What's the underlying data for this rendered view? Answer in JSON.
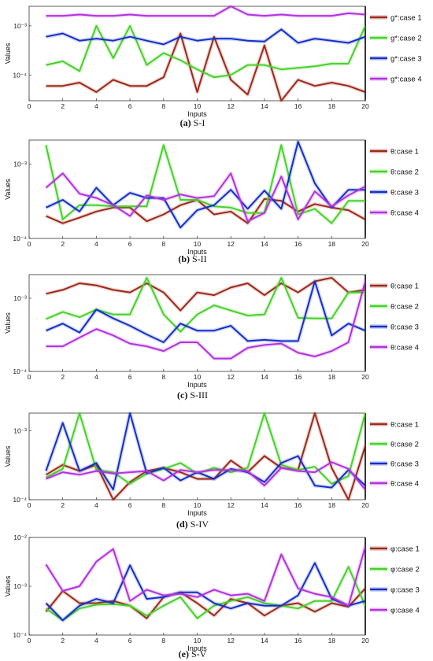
{
  "colors": {
    "case1": "#9b2a1a",
    "case2": "#47d12a",
    "case3": "#1530c8",
    "case4": "#b232e0"
  },
  "chart_data": [
    {
      "type": "line",
      "caption_bold": "(a)",
      "caption_rest": " S-I",
      "xlabel": "Inputs",
      "ylabel": "Values",
      "x": [
        1,
        2,
        3,
        4,
        5,
        6,
        7,
        8,
        9,
        10,
        11,
        12,
        13,
        14,
        15,
        16,
        17,
        18,
        19,
        20
      ],
      "xlim": [
        0,
        20
      ],
      "ylim": [
        3e-05,
        0.0025
      ],
      "yscale": "log",
      "x_ticks": [
        "0",
        "2",
        "4",
        "6",
        "8",
        "10",
        "12",
        "14",
        "16",
        "18",
        "20"
      ],
      "y_ticks": [
        {
          "value": 0.001,
          "label": "10⁻³"
        },
        {
          "value": 0.0001,
          "label": "10⁻⁴"
        }
      ],
      "legend_placement": "right",
      "series": [
        {
          "name": "g*:case 1",
          "values": [
            6e-05,
            6e-05,
            7e-05,
            4.5e-05,
            8e-05,
            6e-05,
            6e-05,
            9e-05,
            0.0007,
            4.5e-05,
            0.0006,
            8e-05,
            4e-05,
            0.0004,
            3e-05,
            8e-05,
            6e-05,
            7e-05,
            6e-05,
            4.5e-05
          ]
        },
        {
          "name": "g*:case 2",
          "values": [
            0.00016,
            0.00019,
            0.00012,
            0.001,
            0.00022,
            0.001,
            0.00016,
            0.00028,
            0.0002,
            0.00013,
            9e-05,
            0.0001,
            0.00016,
            0.00016,
            0.00013,
            0.00014,
            0.00015,
            0.00017,
            0.00017,
            0.001
          ]
        },
        {
          "name": "g*:case 3",
          "values": [
            0.0006,
            0.0007,
            0.0005,
            0.00055,
            0.0005,
            0.0006,
            0.0005,
            0.00042,
            0.0006,
            0.0005,
            0.00055,
            0.00055,
            0.0005,
            0.00048,
            0.00085,
            0.00045,
            0.00055,
            0.0005,
            0.00045,
            0.0006
          ]
        },
        {
          "name": "g*:case 4",
          "values": [
            0.0016,
            0.0016,
            0.0017,
            0.0016,
            0.0016,
            0.0017,
            0.0016,
            0.0016,
            0.0016,
            0.0016,
            0.0016,
            0.0025,
            0.0017,
            0.0016,
            0.0017,
            0.0016,
            0.0016,
            0.0016,
            0.0018,
            0.0017
          ]
        }
      ]
    },
    {
      "type": "line",
      "caption_bold": "(b)",
      "caption_rest": " S-II",
      "xlabel": "Inputs",
      "ylabel": "Values",
      "x": [
        1,
        2,
        3,
        4,
        5,
        6,
        7,
        8,
        9,
        10,
        11,
        12,
        13,
        14,
        15,
        16,
        17,
        18,
        19,
        20
      ],
      "xlim": [
        0,
        20
      ],
      "ylim": [
        0.0001,
        0.0021
      ],
      "yscale": "log",
      "x_ticks": [
        "0",
        "2",
        "4",
        "6",
        "8",
        "10",
        "12",
        "14",
        "16",
        "18",
        "20"
      ],
      "y_ticks": [
        {
          "value": 0.001,
          "label": "10⁻³"
        },
        {
          "value": 0.0001,
          "label": "10⁻⁴"
        }
      ],
      "legend_placement": "right",
      "series": [
        {
          "name": "θ:case 1",
          "values": [
            0.0002,
            0.00016,
            0.00019,
            0.00023,
            0.00026,
            0.00026,
            0.00017,
            0.00021,
            0.00028,
            0.00033,
            0.00021,
            0.00023,
            0.00016,
            0.00034,
            0.00032,
            0.00023,
            0.00029,
            0.00026,
            0.00024,
            0.00018
          ]
        },
        {
          "name": "θ:case 2",
          "values": [
            0.0018,
            0.00018,
            0.00028,
            0.00028,
            0.00027,
            0.00027,
            0.00027,
            0.0018,
            0.00033,
            0.00033,
            0.00027,
            0.00026,
            0.00022,
            0.00022,
            0.0018,
            0.00021,
            0.00025,
            0.00016,
            0.00032,
            0.00032
          ]
        },
        {
          "name": "θ:case 3",
          "values": [
            0.00026,
            0.00033,
            0.00023,
            0.00048,
            0.00028,
            0.00041,
            0.00035,
            0.00035,
            0.00014,
            0.00024,
            0.00028,
            0.00045,
            0.00025,
            0.00044,
            0.00025,
            0.002,
            0.00055,
            0.00026,
            0.00045,
            0.00045
          ]
        },
        {
          "name": "θ:case 4",
          "values": [
            0.00048,
            0.00075,
            0.0004,
            0.00035,
            0.00028,
            0.0002,
            0.00038,
            0.00033,
            0.00039,
            0.00035,
            0.00037,
            0.00075,
            0.00017,
            0.00022,
            0.00068,
            0.00018,
            0.00043,
            0.00027,
            0.00038,
            0.0005
          ]
        }
      ]
    },
    {
      "type": "line",
      "caption_bold": "(c)",
      "caption_rest": " S-III",
      "xlabel": "Inputs",
      "ylabel": "Values",
      "x": [
        1,
        2,
        3,
        4,
        5,
        6,
        7,
        8,
        9,
        10,
        11,
        12,
        13,
        14,
        15,
        16,
        17,
        18,
        19,
        20
      ],
      "xlim": [
        0,
        20
      ],
      "ylim": [
        0.0001,
        0.0021
      ],
      "yscale": "log",
      "x_ticks": [
        "0",
        "2",
        "4",
        "6",
        "8",
        "10",
        "12",
        "14",
        "16",
        "18",
        "20"
      ],
      "y_ticks": [
        {
          "value": 0.001,
          "label": "10⁻³"
        },
        {
          "value": 0.0001,
          "label": "10⁻⁴"
        }
      ],
      "legend_placement": "right",
      "series": [
        {
          "name": "θ:case 1",
          "values": [
            0.00115,
            0.0013,
            0.0016,
            0.0015,
            0.0013,
            0.0012,
            0.0016,
            0.0012,
            0.00068,
            0.0012,
            0.0011,
            0.0014,
            0.0016,
            0.0011,
            0.0016,
            0.0012,
            0.0017,
            0.0019,
            0.0012,
            0.0013
          ]
        },
        {
          "name": "θ:case 2",
          "values": [
            0.00052,
            0.00065,
            0.00055,
            0.0007,
            0.0006,
            0.0006,
            0.0019,
            0.0006,
            0.00035,
            0.0006,
            0.0008,
            0.00068,
            0.00058,
            0.0006,
            0.0019,
            0.00054,
            0.00053,
            0.00053,
            0.0012,
            0.0012
          ]
        },
        {
          "name": "θ:case 3",
          "values": [
            0.00036,
            0.00045,
            0.00034,
            0.0007,
            0.00053,
            0.00042,
            0.00032,
            0.00025,
            0.00045,
            0.00036,
            0.00036,
            0.00042,
            0.00026,
            0.00027,
            0.00026,
            0.00026,
            0.0017,
            0.00031,
            0.00045,
            0.00036
          ]
        },
        {
          "name": "θ:case 4",
          "values": [
            0.00022,
            0.00022,
            0.00029,
            0.00038,
            0.00031,
            0.00024,
            0.00022,
            0.00019,
            0.00025,
            0.00025,
            0.00015,
            0.00015,
            0.00021,
            0.00023,
            0.00024,
            0.00018,
            0.00016,
            0.00019,
            0.00025,
            0.0017
          ]
        }
      ]
    },
    {
      "type": "line",
      "caption_bold": "(d)",
      "caption_rest": " S-IV",
      "xlabel": "Inputs",
      "ylabel": "Values",
      "x": [
        1,
        2,
        3,
        4,
        5,
        6,
        7,
        8,
        9,
        10,
        11,
        12,
        13,
        14,
        15,
        16,
        17,
        18,
        19,
        20
      ],
      "xlim": [
        0,
        20
      ],
      "ylim": [
        0.0001,
        0.0018
      ],
      "yscale": "log",
      "x_ticks": [
        "0",
        "2",
        "4",
        "6",
        "8",
        "10",
        "12",
        "14",
        "16",
        "18",
        "20"
      ],
      "y_ticks": [
        {
          "value": 0.001,
          "label": "10⁻³"
        },
        {
          "value": 0.0001,
          "label": "10⁻⁴"
        }
      ],
      "legend_placement": "right",
      "series": [
        {
          "name": "θ:case 1",
          "values": [
            0.00023,
            0.00032,
            0.00026,
            0.00032,
            0.0001,
            0.00018,
            0.00026,
            0.00029,
            0.00025,
            0.0002,
            0.0002,
            0.00037,
            0.00025,
            0.00043,
            0.00029,
            0.00027,
            0.0018,
            0.00029,
            0.0001,
            0.0006
          ]
        },
        {
          "name": "θ:case 2",
          "values": [
            0.00021,
            0.00028,
            0.0018,
            0.00027,
            0.00025,
            0.00017,
            0.00024,
            0.00028,
            0.00034,
            0.00024,
            0.00029,
            0.00025,
            0.00029,
            0.0018,
            0.00032,
            0.00027,
            0.0003,
            0.00017,
            0.00022,
            0.0018
          ]
        },
        {
          "name": "θ:case 3",
          "values": [
            0.00026,
            0.0013,
            0.00026,
            0.00034,
            0.00014,
            0.0018,
            0.00024,
            0.00029,
            0.00019,
            0.00025,
            0.0002,
            0.00028,
            0.00025,
            0.00018,
            0.00034,
            0.00043,
            0.00016,
            0.00015,
            0.00027,
            0.00016
          ]
        },
        {
          "name": "θ:case 4",
          "values": [
            0.0002,
            0.00025,
            0.00023,
            0.00026,
            0.00024,
            0.00025,
            0.00026,
            0.00019,
            0.00027,
            0.00025,
            0.00027,
            0.00027,
            0.00026,
            0.00016,
            0.00029,
            0.00026,
            0.00025,
            0.00035,
            0.00028,
            0.00014
          ]
        }
      ]
    },
    {
      "type": "line",
      "caption_bold": "(e)",
      "caption_rest": " S-V",
      "xlabel": "Inputs",
      "ylabel": "Values",
      "x": [
        1,
        2,
        3,
        4,
        5,
        6,
        7,
        8,
        9,
        10,
        11,
        12,
        13,
        14,
        15,
        16,
        17,
        18,
        19,
        20
      ],
      "xlim": [
        0,
        20
      ],
      "ylim": [
        0.0001,
        0.01
      ],
      "yscale": "log",
      "x_ticks": [
        "0",
        "2",
        "4",
        "6",
        "8",
        "10",
        "12",
        "14",
        "16",
        "18",
        "20"
      ],
      "y_ticks": [
        {
          "value": 0.01,
          "label": "10⁻²"
        },
        {
          "value": 0.001,
          "label": "10⁻³"
        },
        {
          "value": 0.0001,
          "label": "10⁻⁴"
        }
      ],
      "legend_placement": "right",
      "series": [
        {
          "name": "φ:case 1",
          "values": [
            0.0003,
            0.0008,
            0.00045,
            0.00045,
            0.0005,
            0.0004,
            0.00022,
            0.0006,
            0.00075,
            0.00045,
            0.00025,
            0.00055,
            0.00045,
            0.00025,
            0.0004,
            0.00045,
            0.0003,
            0.00045,
            0.00038,
            0.0009
          ]
        },
        {
          "name": "φ:case 2",
          "values": [
            0.00035,
            0.0002,
            0.00035,
            0.00042,
            0.00043,
            0.0004,
            0.00025,
            0.0004,
            0.0006,
            0.00022,
            0.0004,
            0.0005,
            0.0006,
            0.00045,
            0.0004,
            0.00035,
            0.0005,
            0.0005,
            0.0025,
            0.0004
          ]
        },
        {
          "name": "φ:case 3",
          "values": [
            0.00045,
            0.0002,
            0.0004,
            0.00055,
            0.00045,
            0.0027,
            0.00055,
            0.0006,
            0.00075,
            0.00075,
            0.00045,
            0.00035,
            0.00045,
            0.0004,
            0.0004,
            0.00065,
            0.003,
            0.00055,
            0.0004,
            0.0005
          ]
        },
        {
          "name": "φ:case 4",
          "values": [
            0.0028,
            0.0008,
            0.001,
            0.0032,
            0.0058,
            0.0005,
            0.00085,
            0.00065,
            0.0007,
            0.0006,
            0.00085,
            0.00065,
            0.0007,
            0.0005,
            0.0045,
            0.0009,
            0.0007,
            0.0006,
            0.0004,
            0.0065
          ]
        }
      ]
    }
  ]
}
